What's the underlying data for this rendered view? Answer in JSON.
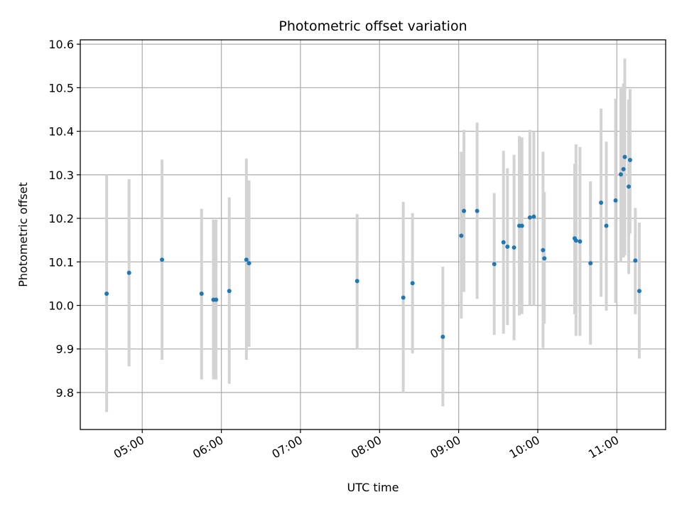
{
  "chart_data": {
    "type": "scatter",
    "title": "Photometric offset variation",
    "xlabel": "UTC time",
    "ylabel": "Photometric offset",
    "grid": true,
    "legend": "none",
    "x_unit": "UTC time (HH:MM)",
    "xlim": [
      "04:13",
      "11:37"
    ],
    "ylim": [
      9.715,
      10.61
    ],
    "x_ticks": [
      "05:00",
      "06:00",
      "07:00",
      "08:00",
      "09:00",
      "10:00",
      "11:00"
    ],
    "y_ticks": [
      "9.8",
      "9.9",
      "10.0",
      "10.1",
      "10.2",
      "10.3",
      "10.4",
      "10.5",
      "10.6"
    ],
    "colors": {
      "points": "#1f77b4",
      "error_bars": "#d3d3d3",
      "grid": "#b0b0b0"
    },
    "series": [
      {
        "points": [
          {
            "x": "04:33",
            "y": 10.027,
            "yerr_low": 9.755,
            "yerr_high": 10.3
          },
          {
            "x": "04:50",
            "y": 10.075,
            "yerr_low": 9.86,
            "yerr_high": 10.29
          },
          {
            "x": "05:15",
            "y": 10.105,
            "yerr_low": 9.875,
            "yerr_high": 10.335
          },
          {
            "x": "05:45",
            "y": 10.027,
            "yerr_low": 9.83,
            "yerr_high": 10.222
          },
          {
            "x": "05:54",
            "y": 10.013,
            "yerr_low": 9.83,
            "yerr_high": 10.197
          },
          {
            "x": "05:56",
            "y": 10.013,
            "yerr_low": 9.83,
            "yerr_high": 10.197
          },
          {
            "x": "06:06",
            "y": 10.033,
            "yerr_low": 9.82,
            "yerr_high": 10.248
          },
          {
            "x": "06:19",
            "y": 10.105,
            "yerr_low": 9.875,
            "yerr_high": 10.337
          },
          {
            "x": "06:21",
            "y": 10.097,
            "yerr_low": 9.905,
            "yerr_high": 10.287
          },
          {
            "x": "07:43",
            "y": 10.056,
            "yerr_low": 9.9,
            "yerr_high": 10.21
          },
          {
            "x": "08:18",
            "y": 10.018,
            "yerr_low": 9.798,
            "yerr_high": 10.238
          },
          {
            "x": "08:25",
            "y": 10.051,
            "yerr_low": 9.89,
            "yerr_high": 10.212
          },
          {
            "x": "08:48",
            "y": 9.928,
            "yerr_low": 9.768,
            "yerr_high": 10.089
          },
          {
            "x": "09:02",
            "y": 10.16,
            "yerr_low": 9.97,
            "yerr_high": 10.353
          },
          {
            "x": "09:04",
            "y": 10.217,
            "yerr_low": 10.031,
            "yerr_high": 10.403
          },
          {
            "x": "09:14",
            "y": 10.217,
            "yerr_low": 10.015,
            "yerr_high": 10.42
          },
          {
            "x": "09:27",
            "y": 10.095,
            "yerr_low": 9.932,
            "yerr_high": 10.258
          },
          {
            "x": "09:34",
            "y": 10.145,
            "yerr_low": 9.935,
            "yerr_high": 10.355
          },
          {
            "x": "09:37",
            "y": 10.135,
            "yerr_low": 9.955,
            "yerr_high": 10.315
          },
          {
            "x": "09:42",
            "y": 10.133,
            "yerr_low": 9.92,
            "yerr_high": 10.346
          },
          {
            "x": "09:46",
            "y": 10.183,
            "yerr_low": 9.977,
            "yerr_high": 10.389
          },
          {
            "x": "09:48",
            "y": 10.183,
            "yerr_low": 9.98,
            "yerr_high": 10.386
          },
          {
            "x": "09:54",
            "y": 10.202,
            "yerr_low": 10.0,
            "yerr_high": 10.403
          },
          {
            "x": "09:57",
            "y": 10.204,
            "yerr_low": 10.0,
            "yerr_high": 10.4
          },
          {
            "x": "10:04",
            "y": 10.127,
            "yerr_low": 9.902,
            "yerr_high": 10.353
          },
          {
            "x": "10:05",
            "y": 10.108,
            "yerr_low": 9.958,
            "yerr_high": 10.26
          },
          {
            "x": "10:28",
            "y": 10.154,
            "yerr_low": 9.98,
            "yerr_high": 10.325
          },
          {
            "x": "10:29",
            "y": 10.149,
            "yerr_low": 9.93,
            "yerr_high": 10.37
          },
          {
            "x": "10:32",
            "y": 10.147,
            "yerr_low": 9.93,
            "yerr_high": 10.364
          },
          {
            "x": "10:40",
            "y": 10.097,
            "yerr_low": 9.91,
            "yerr_high": 10.285
          },
          {
            "x": "10:48",
            "y": 10.236,
            "yerr_low": 10.02,
            "yerr_high": 10.452
          },
          {
            "x": "10:52",
            "y": 10.183,
            "yerr_low": 9.988,
            "yerr_high": 10.376
          },
          {
            "x": "10:59",
            "y": 10.241,
            "yerr_low": 10.006,
            "yerr_high": 10.475
          },
          {
            "x": "11:03",
            "y": 10.301,
            "yerr_low": 10.1,
            "yerr_high": 10.502
          },
          {
            "x": "11:05",
            "y": 10.313,
            "yerr_low": 10.11,
            "yerr_high": 10.51
          },
          {
            "x": "11:06",
            "y": 10.341,
            "yerr_low": 10.115,
            "yerr_high": 10.567
          },
          {
            "x": "11:09",
            "y": 10.273,
            "yerr_low": 10.072,
            "yerr_high": 10.473
          },
          {
            "x": "11:10",
            "y": 10.334,
            "yerr_low": 10.165,
            "yerr_high": 10.497
          },
          {
            "x": "11:14",
            "y": 10.103,
            "yerr_low": 9.98,
            "yerr_high": 10.224
          },
          {
            "x": "11:17",
            "y": 10.033,
            "yerr_low": 9.878,
            "yerr_high": 10.19
          }
        ]
      }
    ]
  }
}
